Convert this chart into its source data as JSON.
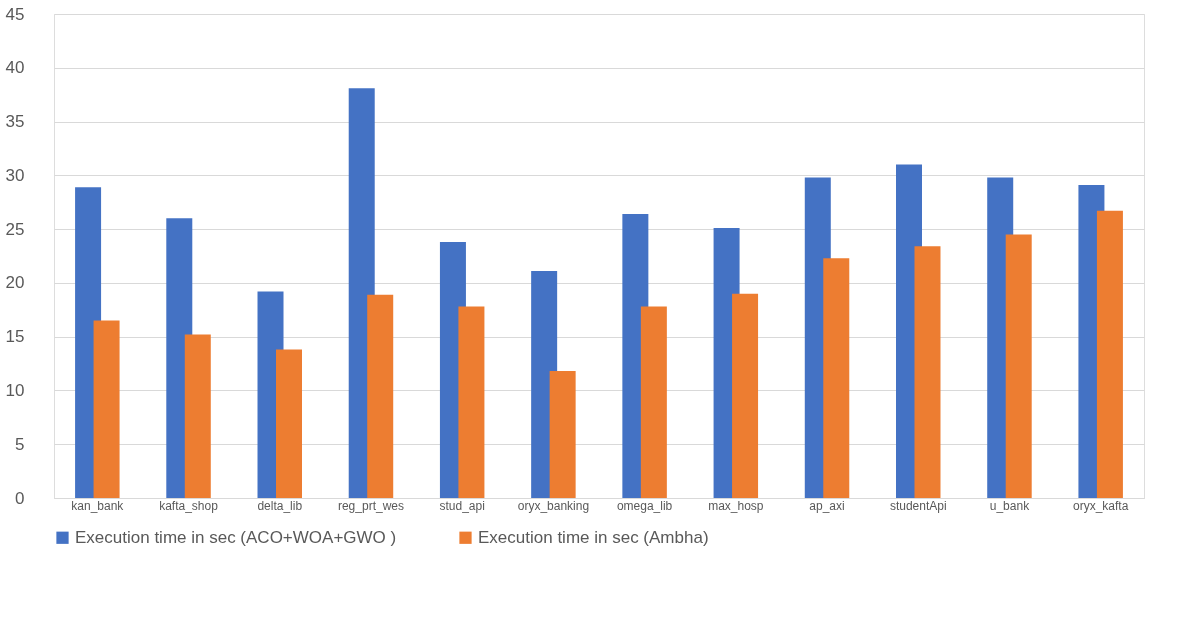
{
  "chart_data": {
    "type": "bar",
    "categories": [
      "kan_bank",
      "kafta_shop",
      "delta_lib",
      "reg_prt_wes",
      "stud_api",
      "oryx_banking",
      "omega_lib",
      "max_hosp",
      "ap_axi",
      "studentApi",
      "u_bank",
      "oryx_kafta"
    ],
    "series": [
      {
        "name": "Execution time in sec (ACO+WOA+GWO )",
        "color": "#4472c4",
        "values": [
          28.9,
          26.0,
          19.2,
          38.1,
          23.8,
          21.1,
          26.4,
          25.1,
          29.8,
          31.0,
          29.8,
          29.1
        ]
      },
      {
        "name": "Execution time in sec (Ambha)",
        "color": "#ed7d31",
        "values": [
          16.5,
          15.2,
          13.8,
          18.9,
          17.8,
          11.8,
          17.8,
          19.0,
          22.3,
          23.4,
          24.5,
          26.7
        ]
      }
    ],
    "ylim": [
      0,
      45
    ],
    "yticks": [
      0,
      5,
      10,
      15,
      20,
      25,
      30,
      35,
      40,
      45
    ],
    "grid": "y",
    "legend": "bottom"
  }
}
